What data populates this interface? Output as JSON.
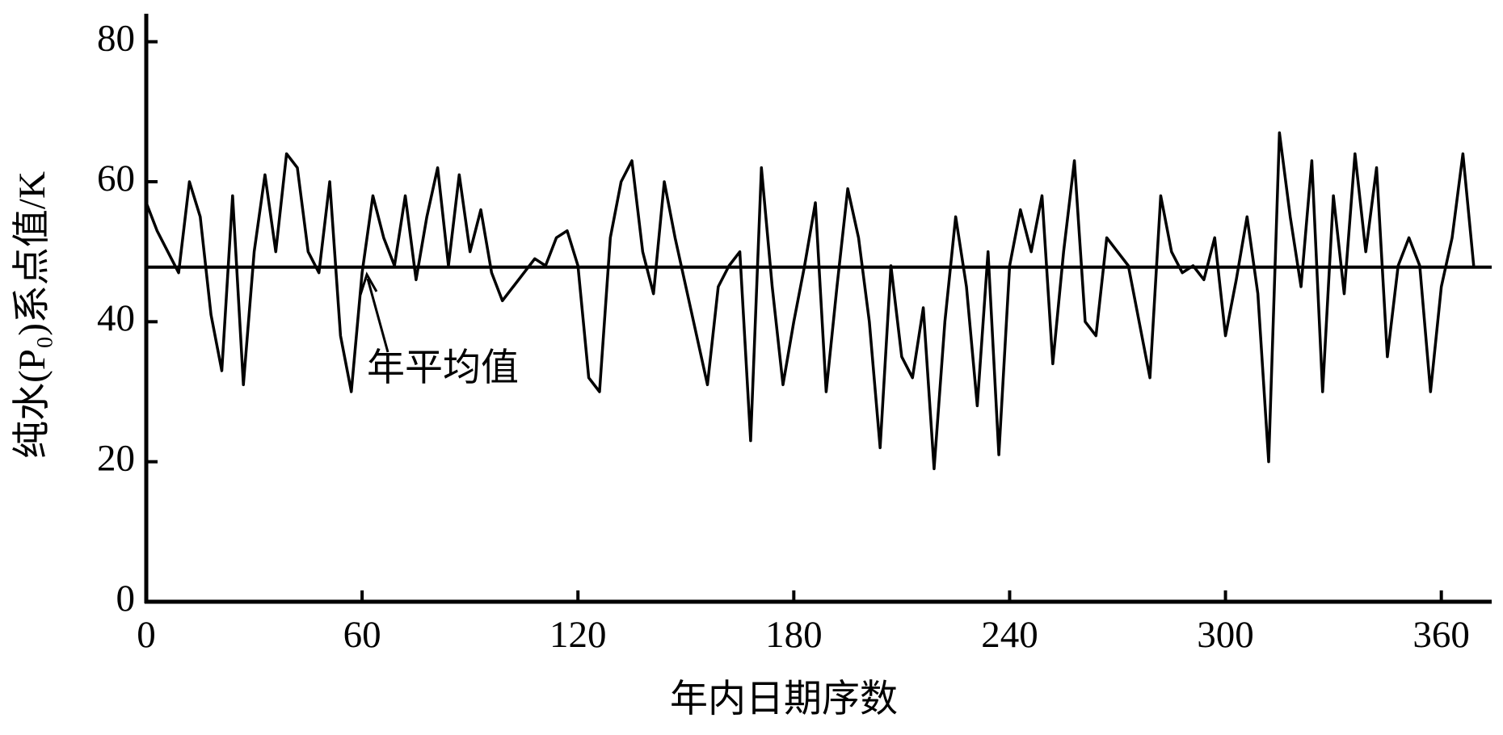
{
  "chart_data": {
    "type": "line",
    "xlabel": "年内日期序数",
    "ylabel": "纯水(P₀)系点值/K",
    "x": [
      0,
      3,
      6,
      9,
      12,
      15,
      18,
      21,
      24,
      27,
      30,
      33,
      36,
      39,
      42,
      45,
      48,
      51,
      54,
      57,
      60,
      63,
      66,
      69,
      72,
      75,
      78,
      81,
      84,
      87,
      90,
      93,
      96,
      99,
      102,
      105,
      108,
      111,
      114,
      117,
      120,
      123,
      126,
      129,
      132,
      135,
      138,
      141,
      144,
      147,
      150,
      153,
      156,
      159,
      162,
      165,
      168,
      171,
      174,
      177,
      180,
      183,
      186,
      189,
      192,
      195,
      198,
      201,
      204,
      207,
      210,
      213,
      216,
      219,
      222,
      225,
      228,
      231,
      234,
      237,
      240,
      243,
      246,
      249,
      252,
      255,
      258,
      261,
      264,
      267,
      270,
      273,
      276,
      279,
      282,
      285,
      288,
      291,
      294,
      297,
      300,
      303,
      306,
      309,
      312,
      315,
      318,
      321,
      324,
      327,
      330,
      333,
      336,
      339,
      342,
      345,
      348,
      351,
      354,
      357,
      360,
      363,
      366,
      369
    ],
    "series": [
      {
        "color": "#000000",
        "values": [
          57,
          53,
          50,
          47,
          60,
          55,
          41,
          33,
          58,
          31,
          50,
          61,
          50,
          64,
          62,
          50,
          47,
          60,
          38,
          30,
          47,
          58,
          52,
          48,
          58,
          46,
          55,
          62,
          48,
          61,
          50,
          56,
          47,
          43,
          45,
          47,
          49,
          48,
          52,
          53,
          48,
          32,
          30,
          52,
          60,
          63,
          50,
          44,
          60,
          52,
          45,
          38,
          31,
          45,
          48,
          50,
          23,
          62,
          45,
          31,
          40,
          48,
          57,
          30,
          45,
          59,
          52,
          40,
          22,
          48,
          35,
          32,
          42,
          19,
          40,
          55,
          45,
          28,
          50,
          21,
          48,
          56,
          50,
          58,
          34,
          50,
          63,
          40,
          38,
          52,
          50,
          48,
          40,
          32,
          58,
          50,
          47,
          48,
          46,
          52,
          38,
          46,
          55,
          44,
          20,
          67,
          55,
          45,
          63,
          30,
          58,
          44,
          64,
          50,
          62,
          35,
          48,
          52,
          48,
          30,
          45,
          52,
          64,
          48
        ]
      }
    ],
    "reference_line": {
      "value": 47.8,
      "label": "年平均值"
    },
    "xlim": [
      0,
      374
    ],
    "ylim": [
      0,
      84
    ],
    "xticks": [
      0,
      60,
      120,
      180,
      240,
      300,
      360
    ],
    "yticks": [
      0,
      20,
      40,
      60,
      80
    ],
    "grid": false
  }
}
